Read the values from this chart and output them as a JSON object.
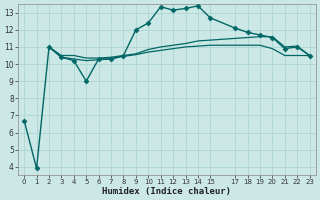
{
  "title": "",
  "xlabel": "Humidex (Indice chaleur)",
  "bg_color": "#cce8e6",
  "grid_color": "#b0d8d4",
  "line_color": "#006666",
  "xlim": [
    -0.5,
    23.5
  ],
  "ylim": [
    3.5,
    13.5
  ],
  "xticks": [
    0,
    1,
    2,
    3,
    4,
    5,
    6,
    7,
    8,
    9,
    10,
    11,
    12,
    13,
    14,
    15,
    17,
    18,
    19,
    20,
    21,
    22,
    23
  ],
  "yticks": [
    4,
    5,
    6,
    7,
    8,
    9,
    10,
    11,
    12,
    13
  ],
  "series1_x": [
    0,
    1,
    2,
    3,
    4,
    5,
    6,
    7,
    8,
    9,
    10,
    11,
    12,
    13,
    14,
    15,
    17,
    18,
    19,
    20,
    21,
    22,
    23
  ],
  "series1_y": [
    6.7,
    3.9,
    11.0,
    10.4,
    10.2,
    9.0,
    10.3,
    10.3,
    10.5,
    12.0,
    12.4,
    13.35,
    13.15,
    13.25,
    13.4,
    12.7,
    12.1,
    11.85,
    11.7,
    11.55,
    10.9,
    11.0,
    10.5
  ],
  "series2_x": [
    2,
    3,
    4,
    5,
    6,
    7,
    8,
    9,
    10,
    11,
    12,
    13,
    14,
    15,
    17,
    18,
    19,
    20,
    21,
    22,
    23
  ],
  "series2_y": [
    11.0,
    10.5,
    10.5,
    10.35,
    10.35,
    10.4,
    10.5,
    10.6,
    10.85,
    11.0,
    11.1,
    11.2,
    11.35,
    11.4,
    11.5,
    11.55,
    11.6,
    11.6,
    11.0,
    11.05,
    10.5
  ],
  "series3_x": [
    2,
    3,
    4,
    5,
    6,
    7,
    8,
    9,
    10,
    11,
    12,
    13,
    14,
    15,
    17,
    18,
    19,
    20,
    21,
    22,
    23
  ],
  "series3_y": [
    11.0,
    10.4,
    10.3,
    10.2,
    10.25,
    10.3,
    10.45,
    10.55,
    10.7,
    10.8,
    10.9,
    11.0,
    11.05,
    11.1,
    11.1,
    11.1,
    11.1,
    10.9,
    10.5,
    10.5,
    10.5
  ]
}
